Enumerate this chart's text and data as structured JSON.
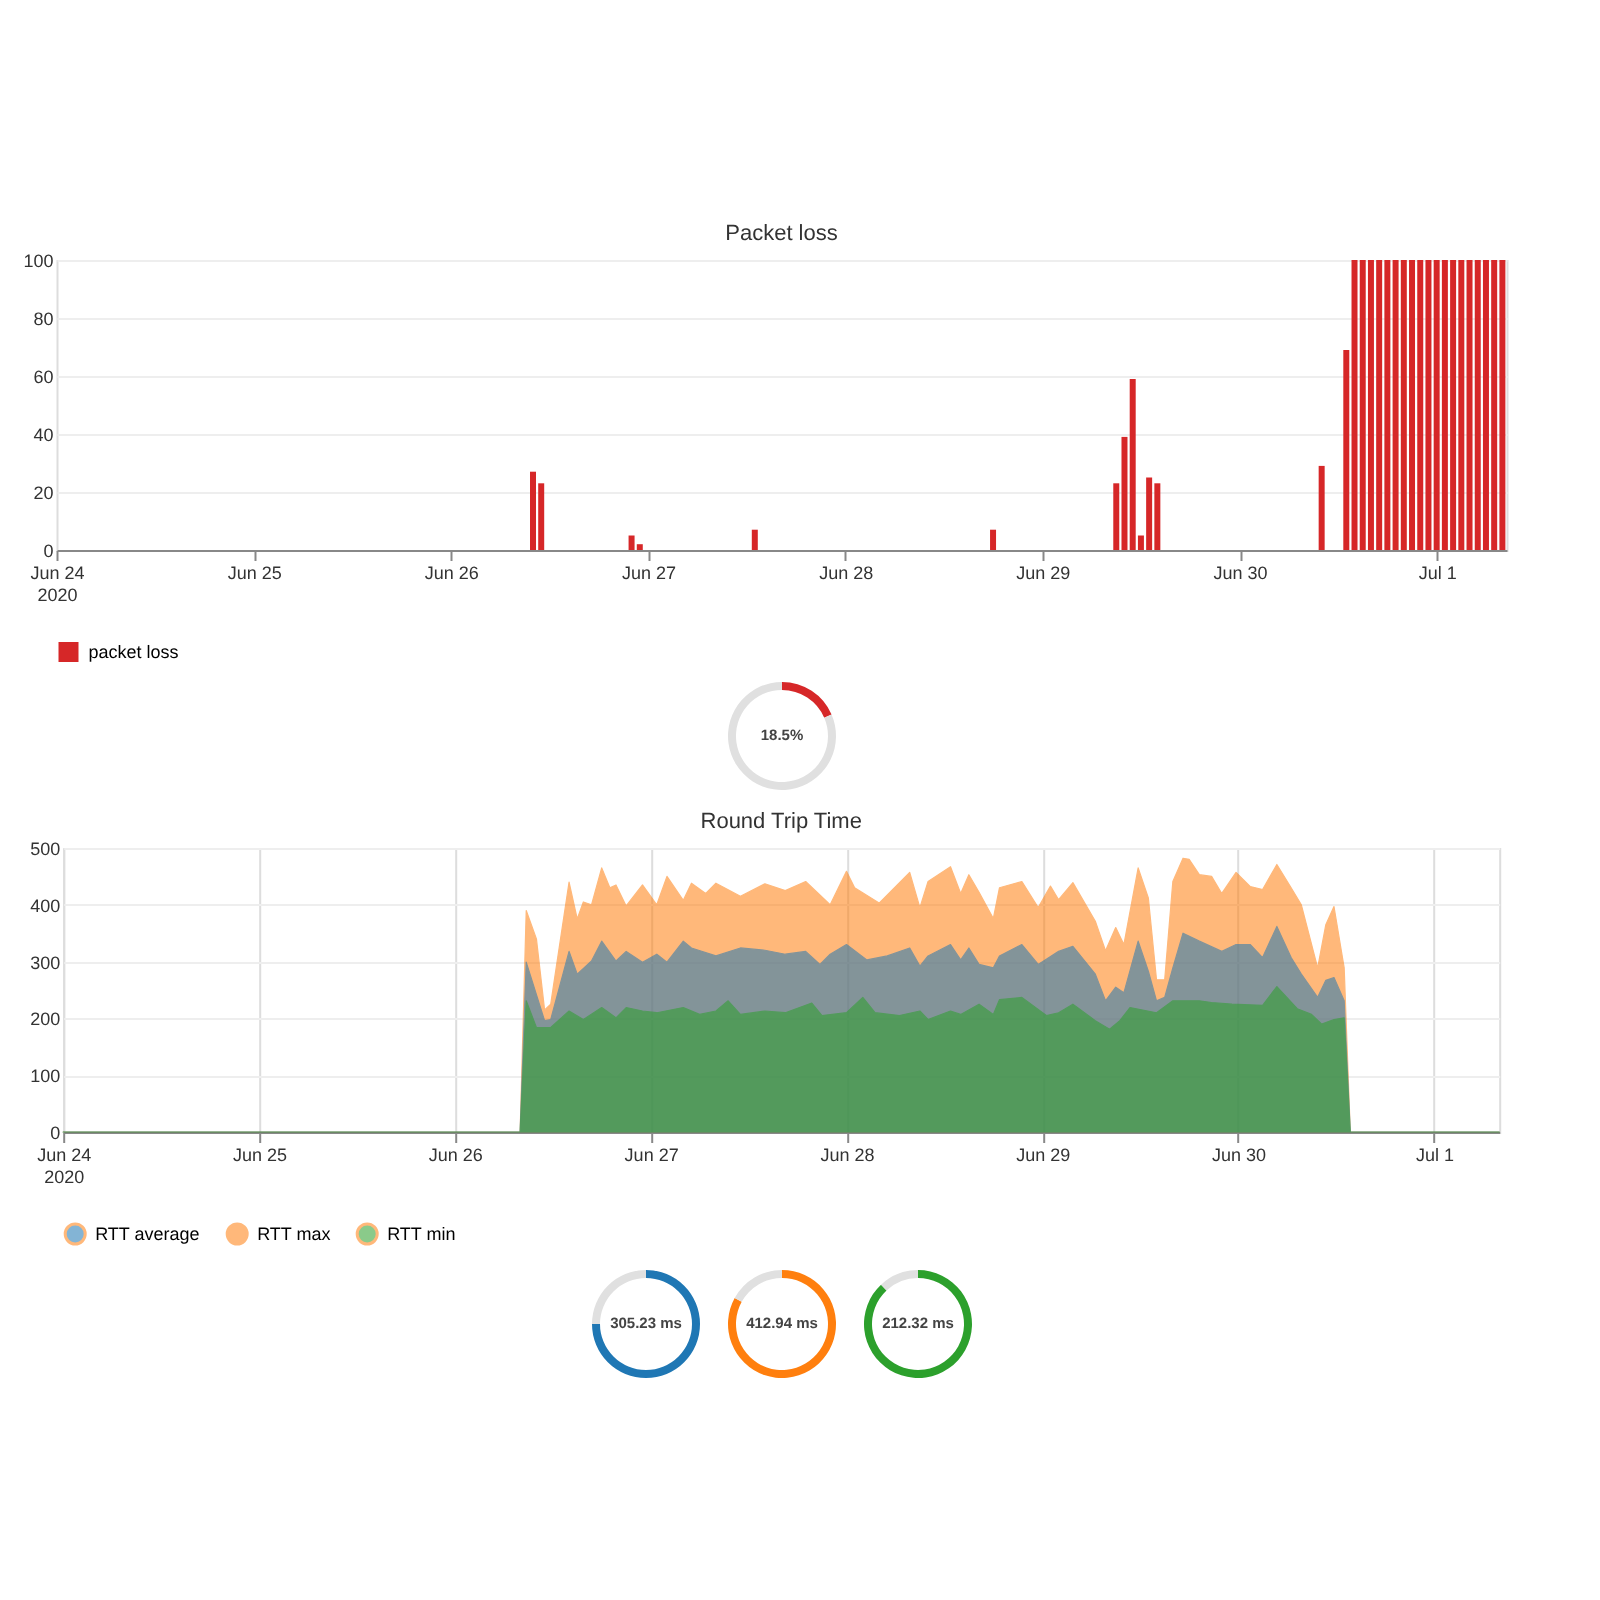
{
  "chart_data": [
    {
      "type": "bar",
      "title": "Packet loss",
      "grid": "y",
      "legend": "bottom",
      "x": [
        "2020-06-26T10:00",
        "2020-06-26T11:00",
        "2020-06-26T22:00",
        "2020-06-26T23:00",
        "2020-06-27T13:00",
        "2020-06-28T18:00",
        "2020-06-29T09:00",
        "2020-06-29T10:00",
        "2020-06-29T11:00",
        "2020-06-29T12:00",
        "2020-06-29T13:00",
        "2020-06-29T14:00",
        "2020-06-30T10:00",
        "2020-06-30T13:00",
        "2020-06-30T14:00",
        "2020-06-30T15:00",
        "2020-06-30T16:00",
        "2020-06-30T17:00",
        "2020-06-30T18:00",
        "2020-06-30T19:00",
        "2020-06-30T20:00",
        "2020-06-30T21:00",
        "2020-06-30T22:00",
        "2020-06-30T23:00",
        "2020-07-01T00:00",
        "2020-07-01T01:00",
        "2020-07-01T02:00",
        "2020-07-01T03:00",
        "2020-07-01T04:00",
        "2020-07-01T05:00",
        "2020-07-01T06:00",
        "2020-07-01T07:00",
        "2020-07-01T08:00"
      ],
      "series": [
        {
          "name": "packet loss",
          "color": "#d62728",
          "values": [
            27,
            23,
            5,
            2,
            7,
            7,
            23,
            39,
            59,
            5,
            25,
            23,
            29,
            69,
            100,
            100,
            100,
            100,
            100,
            100,
            100,
            100,
            100,
            100,
            100,
            100,
            100,
            100,
            100,
            100,
            100,
            100,
            100
          ]
        }
      ],
      "xlim": [
        "2020-06-24T00:00",
        "2020-07-01T08:30"
      ],
      "xticks": [
        {
          "value": "2020-06-24",
          "label": "Jun 24\n2020"
        },
        {
          "value": "2020-06-25",
          "label": "Jun 25"
        },
        {
          "value": "2020-06-26",
          "label": "Jun 26"
        },
        {
          "value": "2020-06-27",
          "label": "Jun 27"
        },
        {
          "value": "2020-06-28",
          "label": "Jun 28"
        },
        {
          "value": "2020-06-29",
          "label": "Jun 29"
        },
        {
          "value": "2020-06-30",
          "label": "Jun 30"
        },
        {
          "value": "2020-07-01",
          "label": "Jul 1"
        }
      ],
      "ylim": [
        0,
        100
      ],
      "yticks": [
        0,
        20,
        40,
        60,
        80,
        100
      ]
    },
    {
      "type": "donut",
      "categories": [
        null,
        null
      ],
      "values": [
        18.5,
        81.5
      ],
      "colors": [
        "#d62728",
        "#e0e0e0"
      ],
      "value_labels": [
        "18.5%",
        null
      ]
    },
    {
      "type": "area",
      "title": "Round Trip Time",
      "grid": true,
      "legend": "bottom",
      "series": [
        {
          "name": "RTT average",
          "color": "#1f77b4",
          "x": [
            "2020-06-24T00:00",
            "2020-06-26T08:00",
            "2020-06-26T08:45",
            "2020-06-26T11:00",
            "2020-06-26T11:45",
            "2020-06-26T14:00",
            "2020-06-26T15:00",
            "2020-06-26T16:45",
            "2020-06-26T18:00",
            "2020-06-26T19:45",
            "2020-06-26T21:00",
            "2020-06-26T23:00",
            "2020-06-27T00:45",
            "2020-06-27T02:00",
            "2020-06-27T04:00",
            "2020-06-27T05:00",
            "2020-06-27T08:00",
            "2020-06-27T11:00",
            "2020-06-27T14:00",
            "2020-06-27T16:30",
            "2020-06-27T19:00",
            "2020-06-27T20:45",
            "2020-06-27T22:00",
            "2020-06-28T00:00",
            "2020-06-28T02:30",
            "2020-06-28T05:00",
            "2020-06-28T07:45",
            "2020-06-28T09:00",
            "2020-06-28T10:00",
            "2020-06-28T12:45",
            "2020-06-28T14:00",
            "2020-06-28T15:00",
            "2020-06-28T16:15",
            "2020-06-28T18:00",
            "2020-06-28T18:45",
            "2020-06-28T21:30",
            "2020-06-28T23:30",
            "2020-06-29T02:00",
            "2020-06-29T03:45",
            "2020-06-29T06:30",
            "2020-06-29T07:45",
            "2020-06-29T09:00",
            "2020-06-29T10:00",
            "2020-06-29T11:45",
            "2020-06-29T13:00",
            "2020-06-29T14:00",
            "2020-06-29T15:00",
            "2020-06-29T16:00",
            "2020-06-29T17:15",
            "2020-06-29T19:15",
            "2020-06-29T22:00",
            "2020-06-29T23:45",
            "2020-06-30T01:30",
            "2020-06-30T03:00",
            "2020-06-30T04:45",
            "2020-06-30T06:30",
            "2020-06-30T07:45",
            "2020-06-30T09:45",
            "2020-06-30T10:45",
            "2020-06-30T11:45",
            "2020-06-30T13:00",
            "2020-06-30T13:45",
            "2020-07-01T08:00"
          ],
          "values": [
            0,
            0,
            299,
            196,
            198,
            318,
            278,
            301,
            336,
            301,
            318,
            299,
            313,
            299,
            336,
            324,
            310,
            324,
            320,
            313,
            318,
            295,
            313,
            330,
            303,
            310,
            324,
            292,
            310,
            330,
            303,
            324,
            295,
            289,
            310,
            330,
            295,
            318,
            327,
            278,
            231,
            255,
            245,
            336,
            283,
            231,
            237,
            289,
            350,
            336,
            318,
            330,
            330,
            307,
            362,
            307,
            278,
            237,
            267,
            272,
            231,
            0,
            0
          ]
        },
        {
          "name": "RTT max",
          "color": "#ff7f0e",
          "x": [
            "2020-06-24T00:00",
            "2020-06-26T08:00",
            "2020-06-26T08:45",
            "2020-06-26T10:00",
            "2020-06-26T11:00",
            "2020-06-26T11:45",
            "2020-06-26T14:00",
            "2020-06-26T15:00",
            "2020-06-26T15:45",
            "2020-06-26T16:45",
            "2020-06-26T18:00",
            "2020-06-26T19:00",
            "2020-06-26T19:45",
            "2020-06-26T21:00",
            "2020-06-26T23:00",
            "2020-06-27T00:45",
            "2020-06-27T02:00",
            "2020-06-27T04:00",
            "2020-06-27T05:00",
            "2020-06-27T06:45",
            "2020-06-27T08:00",
            "2020-06-27T11:00",
            "2020-06-27T14:00",
            "2020-06-27T16:30",
            "2020-06-27T19:00",
            "2020-06-27T22:00",
            "2020-06-28T00:00",
            "2020-06-28T01:00",
            "2020-06-28T04:00",
            "2020-06-28T07:45",
            "2020-06-28T09:00",
            "2020-06-28T10:00",
            "2020-06-28T12:45",
            "2020-06-28T14:00",
            "2020-06-28T15:00",
            "2020-06-28T16:15",
            "2020-06-28T18:00",
            "2020-06-28T18:45",
            "2020-06-28T21:30",
            "2020-06-28T23:30",
            "2020-06-29T01:00",
            "2020-06-29T02:00",
            "2020-06-29T03:45",
            "2020-06-29T06:30",
            "2020-06-29T07:45",
            "2020-06-29T09:00",
            "2020-06-29T10:00",
            "2020-06-29T11:45",
            "2020-06-29T13:00",
            "2020-06-29T14:00",
            "2020-06-29T15:00",
            "2020-06-29T16:00",
            "2020-06-29T17:15",
            "2020-06-29T18:00",
            "2020-06-29T19:15",
            "2020-06-29T20:45",
            "2020-06-29T22:00",
            "2020-06-29T23:45",
            "2020-06-30T01:30",
            "2020-06-30T03:00",
            "2020-06-30T04:45",
            "2020-06-30T06:30",
            "2020-06-30T07:45",
            "2020-06-30T09:45",
            "2020-06-30T10:45",
            "2020-06-30T11:45",
            "2020-06-30T13:00",
            "2020-06-30T13:45",
            "2020-07-01T08:00"
          ],
          "values": [
            0,
            0,
            390,
            340,
            215,
            225,
            440,
            375,
            405,
            400,
            465,
            430,
            435,
            398,
            435,
            400,
            450,
            408,
            438,
            420,
            438,
            415,
            437,
            425,
            441,
            400,
            459,
            430,
            403,
            457,
            395,
            441,
            467,
            420,
            453,
            422,
            376,
            430,
            441,
            395,
            433,
            409,
            439,
            371,
            319,
            360,
            330,
            465,
            412,
            268,
            268,
            441,
            482,
            480,
            453,
            450,
            420,
            457,
            432,
            427,
            471,
            430,
            400,
            289,
            365,
            397,
            289,
            0,
            0
          ]
        },
        {
          "name": "RTT min",
          "color": "#2ca02c",
          "x": [
            "2020-06-24T00:00",
            "2020-06-26T08:00",
            "2020-06-26T08:45",
            "2020-06-26T10:00",
            "2020-06-26T11:45",
            "2020-06-26T14:00",
            "2020-06-26T15:45",
            "2020-06-26T18:00",
            "2020-06-26T19:45",
            "2020-06-26T21:00",
            "2020-06-26T23:00",
            "2020-06-27T00:45",
            "2020-06-27T04:00",
            "2020-06-27T06:00",
            "2020-06-27T08:00",
            "2020-06-27T09:30",
            "2020-06-27T11:00",
            "2020-06-27T14:00",
            "2020-06-27T16:30",
            "2020-06-27T19:45",
            "2020-06-27T21:00",
            "2020-06-28T00:00",
            "2020-06-28T02:00",
            "2020-06-28T03:30",
            "2020-06-28T06:30",
            "2020-06-28T09:00",
            "2020-06-28T10:00",
            "2020-06-28T12:45",
            "2020-06-28T14:00",
            "2020-06-28T16:15",
            "2020-06-28T18:00",
            "2020-06-28T18:45",
            "2020-06-28T21:30",
            "2020-06-29T00:30",
            "2020-06-29T02:00",
            "2020-06-29T03:45",
            "2020-06-29T06:30",
            "2020-06-29T08:15",
            "2020-06-29T09:30",
            "2020-06-29T10:45",
            "2020-06-29T14:00",
            "2020-06-29T16:00",
            "2020-06-29T19:15",
            "2020-06-29T20:45",
            "2020-06-29T23:15",
            "2020-06-30T03:00",
            "2020-06-30T04:45",
            "2020-06-30T07:15",
            "2020-06-30T09:00",
            "2020-06-30T10:15",
            "2020-06-30T11:45",
            "2020-06-30T13:00",
            "2020-06-30T13:45",
            "2020-07-01T08:00"
          ],
          "values": [
            0,
            0,
            231,
            184,
            184,
            213,
            198,
            219,
            201,
            219,
            213,
            210,
            219,
            207,
            213,
            231,
            207,
            213,
            210,
            227,
            205,
            210,
            237,
            210,
            205,
            213,
            198,
            213,
            207,
            225,
            207,
            233,
            237,
            205,
            210,
            225,
            196,
            181,
            196,
            219,
            210,
            231,
            231,
            228,
            225,
            223,
            256,
            217,
            207,
            190,
            198,
            201,
            0,
            0
          ]
        }
      ],
      "xlim": [
        "2020-06-24T00:00",
        "2020-07-01T08:00"
      ],
      "xticks": [
        {
          "value": "2020-06-24",
          "label": "Jun 24\n2020"
        },
        {
          "value": "2020-06-25",
          "label": "Jun 25"
        },
        {
          "value": "2020-06-26",
          "label": "Jun 26"
        },
        {
          "value": "2020-06-27",
          "label": "Jun 27"
        },
        {
          "value": "2020-06-28",
          "label": "Jun 28"
        },
        {
          "value": "2020-06-29",
          "label": "Jun 29"
        },
        {
          "value": "2020-06-30",
          "label": "Jun 30"
        },
        {
          "value": "2020-07-01",
          "label": "Jul 1"
        }
      ],
      "ylim": [
        0,
        500
      ],
      "yticks": [
        0,
        100,
        200,
        300,
        400,
        500
      ]
    },
    {
      "type": "donut",
      "categories": [
        null,
        null
      ],
      "values": [
        75,
        25
      ],
      "colors": [
        "#1f77b4",
        "#e0e0e0"
      ],
      "annotations": [
        "305.23 ms"
      ]
    },
    {
      "type": "donut",
      "categories": [
        null,
        null
      ],
      "values": [
        83,
        17
      ],
      "colors": [
        "#ff7f0e",
        "#e0e0e0"
      ],
      "annotations": [
        "412.94 ms"
      ]
    },
    {
      "type": "donut",
      "categories": [
        null,
        null
      ],
      "values": [
        88,
        12
      ],
      "colors": [
        "#2ca02c",
        "#e0e0e0"
      ],
      "annotations": [
        "212.32 ms"
      ]
    }
  ]
}
